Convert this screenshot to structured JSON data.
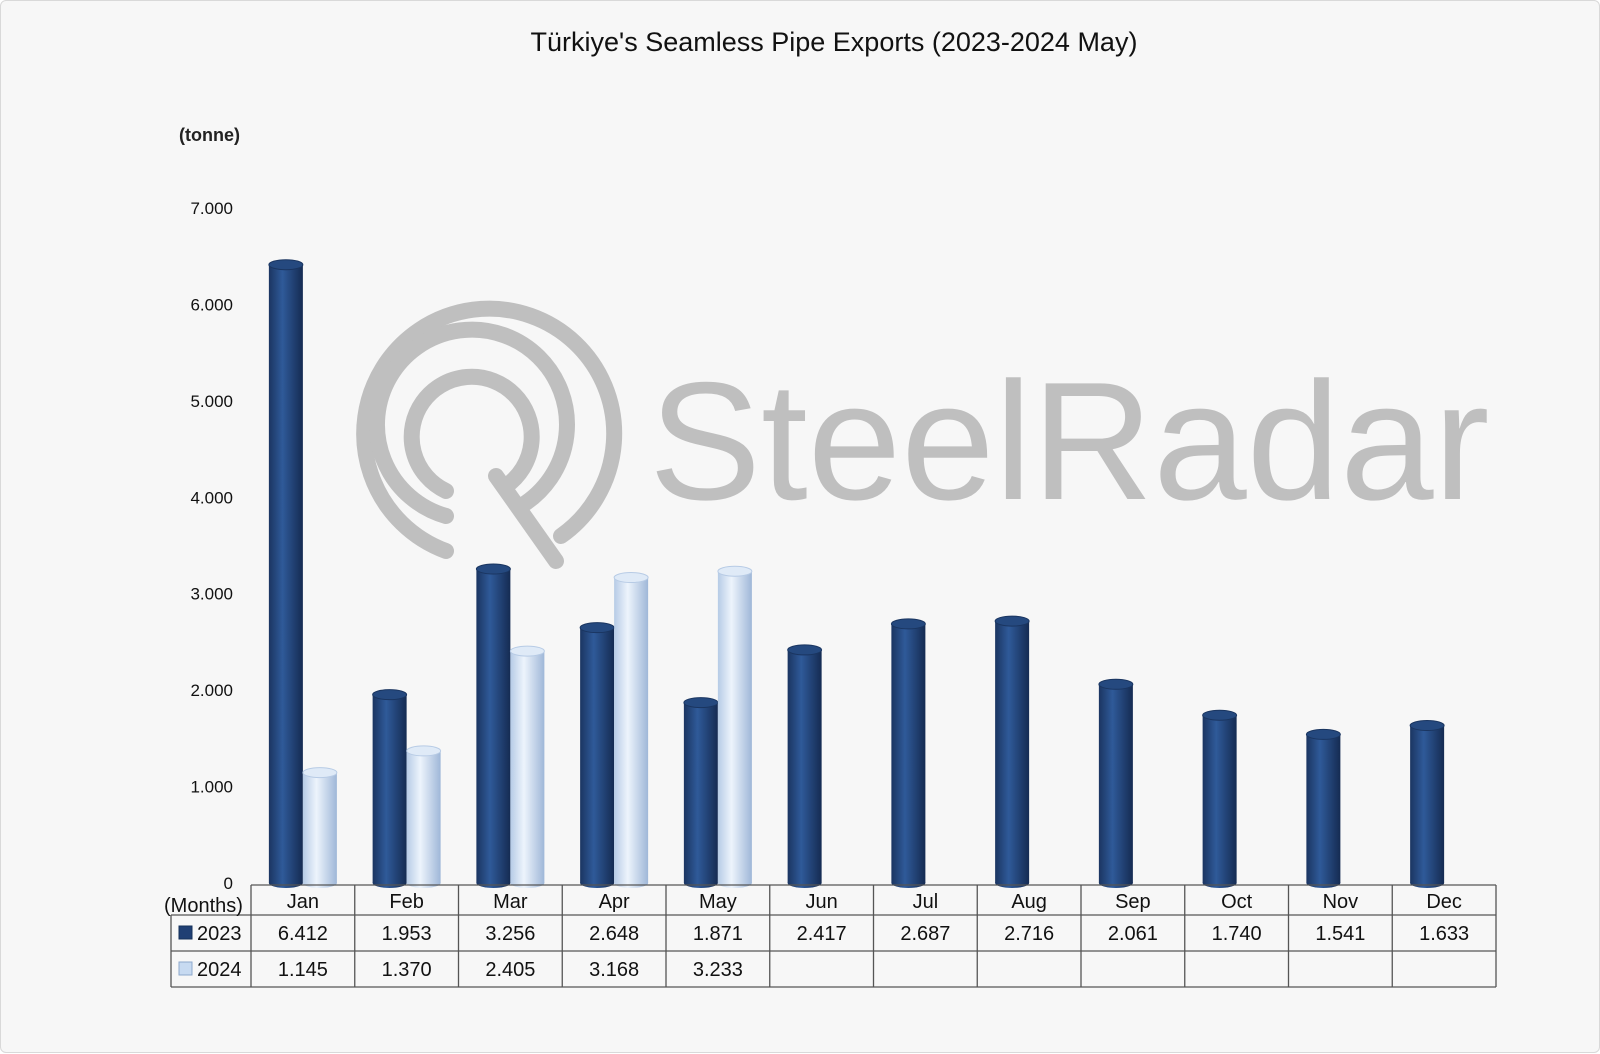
{
  "chart_data": {
    "type": "bar",
    "title": "Türkiye's Seamless Pipe Exports (2023-2024 May)",
    "ylabel": "(tonne)",
    "xlabel": "(Months)",
    "ylim": [
      0,
      7000
    ],
    "y_ticks": [
      "0",
      "1.000",
      "2.000",
      "3.000",
      "4.000",
      "5.000",
      "6.000",
      "7.000"
    ],
    "categories": [
      "Jan",
      "Feb",
      "Mar",
      "Apr",
      "May",
      "Jun",
      "Jul",
      "Aug",
      "Sep",
      "Oct",
      "Nov",
      "Dec"
    ],
    "series": [
      {
        "name": "2023",
        "color": "#1f3f74",
        "values": [
          6412,
          1953,
          3256,
          2648,
          1871,
          2417,
          2687,
          2716,
          2061,
          1740,
          1541,
          1633
        ],
        "labels": [
          "6.412",
          "1.953",
          "3.256",
          "2.648",
          "1.871",
          "2.417",
          "2.687",
          "2.716",
          "2.061",
          "1.740",
          "1.541",
          "1.633"
        ]
      },
      {
        "name": "2024",
        "color": "#c7daf1",
        "values": [
          1145,
          1370,
          2405,
          3168,
          3233,
          null,
          null,
          null,
          null,
          null,
          null,
          null
        ],
        "labels": [
          "1.145",
          "1.370",
          "2.405",
          "3.168",
          "3.233",
          "",
          "",
          "",
          "",
          "",
          "",
          ""
        ]
      }
    ],
    "legend": "data-table",
    "grid": false
  },
  "watermark": {
    "text": "SteelRadar",
    "icon": "radar-logo-icon"
  }
}
